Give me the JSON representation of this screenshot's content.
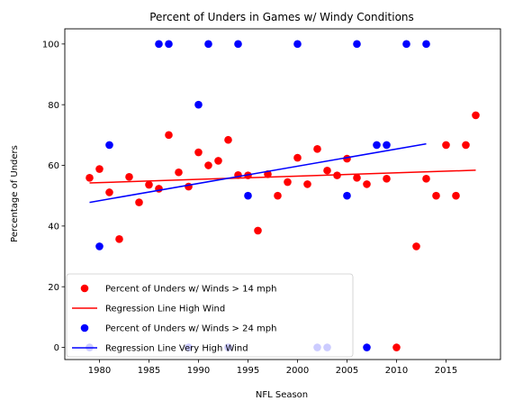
{
  "chart_data": {
    "type": "scatter",
    "title": "Percent of Unders in Games w/ Windy Conditions",
    "xlabel": "NFL Season",
    "ylabel": "Percentage of Unders",
    "xlim": [
      1976.5,
      2020.5
    ],
    "ylim": [
      -4,
      105
    ],
    "x_ticks": [
      1980,
      1985,
      1990,
      1995,
      2000,
      2005,
      2010,
      2015
    ],
    "y_ticks": [
      0,
      20,
      40,
      60,
      80,
      100
    ],
    "grid": false,
    "legend_position": "bottom-left",
    "series": [
      {
        "name": "Percent of Unders w/ Winds > 14 mph",
        "kind": "scatter",
        "color": "#ff0000",
        "points": [
          [
            1979,
            55.9
          ],
          [
            1980,
            58.8
          ],
          [
            1981,
            51.1
          ],
          [
            1982,
            35.7
          ],
          [
            1983,
            56.2
          ],
          [
            1984,
            47.8
          ],
          [
            1985,
            53.6
          ],
          [
            1986,
            52.3
          ],
          [
            1987,
            70.0
          ],
          [
            1988,
            57.7
          ],
          [
            1989,
            53.0
          ],
          [
            1990,
            64.3
          ],
          [
            1991,
            60.0
          ],
          [
            1992,
            61.5
          ],
          [
            1993,
            68.4
          ],
          [
            1994,
            56.8
          ],
          [
            1995,
            56.7
          ],
          [
            1996,
            38.5
          ],
          [
            1997,
            57.1
          ],
          [
            1998,
            50.0
          ],
          [
            1999,
            54.5
          ],
          [
            2000,
            62.5
          ],
          [
            2001,
            53.8
          ],
          [
            2002,
            65.4
          ],
          [
            2003,
            58.3
          ],
          [
            2004,
            56.7
          ],
          [
            2005,
            62.2
          ],
          [
            2006,
            55.9
          ],
          [
            2007,
            53.8
          ],
          [
            2009,
            55.6
          ],
          [
            2010,
            0.0
          ],
          [
            2012,
            33.3
          ],
          [
            2013,
            55.6
          ],
          [
            2014,
            50.0
          ],
          [
            2015,
            66.7
          ],
          [
            2016,
            50.0
          ],
          [
            2017,
            66.7
          ],
          [
            2018,
            76.5
          ]
        ]
      },
      {
        "name": "Regression Line High Wind",
        "kind": "line",
        "color": "#ff0000",
        "points": [
          [
            1979,
            54.2
          ],
          [
            2018,
            58.4
          ]
        ]
      },
      {
        "name": "Percent of Unders w/ Winds > 24 mph",
        "kind": "scatter",
        "color": "#0000ff",
        "points": [
          [
            1979,
            0
          ],
          [
            1980,
            33.3
          ],
          [
            1981,
            66.7
          ],
          [
            1986,
            100
          ],
          [
            1987,
            100
          ],
          [
            1989,
            0
          ],
          [
            1990,
            80
          ],
          [
            1991,
            100
          ],
          [
            1993,
            0
          ],
          [
            1994,
            100
          ],
          [
            1995,
            50
          ],
          [
            2000,
            100
          ],
          [
            2002,
            0
          ],
          [
            2003,
            0
          ],
          [
            2005,
            50
          ],
          [
            2006,
            100
          ],
          [
            2007,
            0
          ],
          [
            2008,
            66.7
          ],
          [
            2009,
            66.7
          ],
          [
            2011,
            100
          ],
          [
            2013,
            100
          ]
        ]
      },
      {
        "name": "Regression Line Very High Wind",
        "kind": "line",
        "color": "#0000ff",
        "points": [
          [
            1979,
            47.8
          ],
          [
            2013,
            67.1
          ]
        ]
      }
    ]
  }
}
